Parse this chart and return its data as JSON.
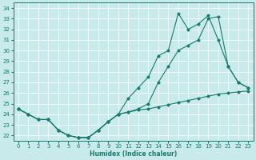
{
  "xlabel": "Humidex (Indice chaleur)",
  "xlim": [
    -0.5,
    23.5
  ],
  "ylim": [
    21.5,
    34.5
  ],
  "yticks": [
    22,
    23,
    24,
    25,
    26,
    27,
    28,
    29,
    30,
    31,
    32,
    33,
    34
  ],
  "xticks": [
    0,
    1,
    2,
    3,
    4,
    5,
    6,
    7,
    8,
    9,
    10,
    11,
    12,
    13,
    14,
    15,
    16,
    17,
    18,
    19,
    20,
    21,
    22,
    23
  ],
  "background_color": "#c8eaea",
  "grid_color": "#ffffff",
  "line_color": "#1a7a6e",
  "line1_y": [
    24.5,
    24.0,
    23.5,
    23.5,
    22.5,
    22.0,
    21.8,
    21.8,
    22.5,
    23.3,
    24.0,
    25.5,
    26.5,
    27.5,
    29.5,
    30.0,
    33.5,
    32.0,
    32.5,
    33.3,
    31.0,
    28.5,
    27.0,
    26.5
  ],
  "line2_y": [
    24.5,
    24.0,
    23.5,
    23.5,
    22.5,
    22.0,
    21.8,
    21.8,
    22.5,
    23.3,
    24.0,
    24.2,
    24.5,
    25.0,
    27.0,
    28.5,
    30.0,
    30.5,
    31.0,
    33.0,
    33.2,
    28.5,
    27.0,
    26.5
  ],
  "line3_y": [
    24.5,
    24.0,
    23.5,
    23.5,
    22.5,
    22.0,
    21.8,
    21.8,
    22.5,
    23.3,
    24.0,
    24.2,
    24.4,
    24.5,
    24.7,
    24.9,
    25.1,
    25.3,
    25.5,
    25.7,
    25.9,
    26.0,
    26.1,
    26.2
  ]
}
